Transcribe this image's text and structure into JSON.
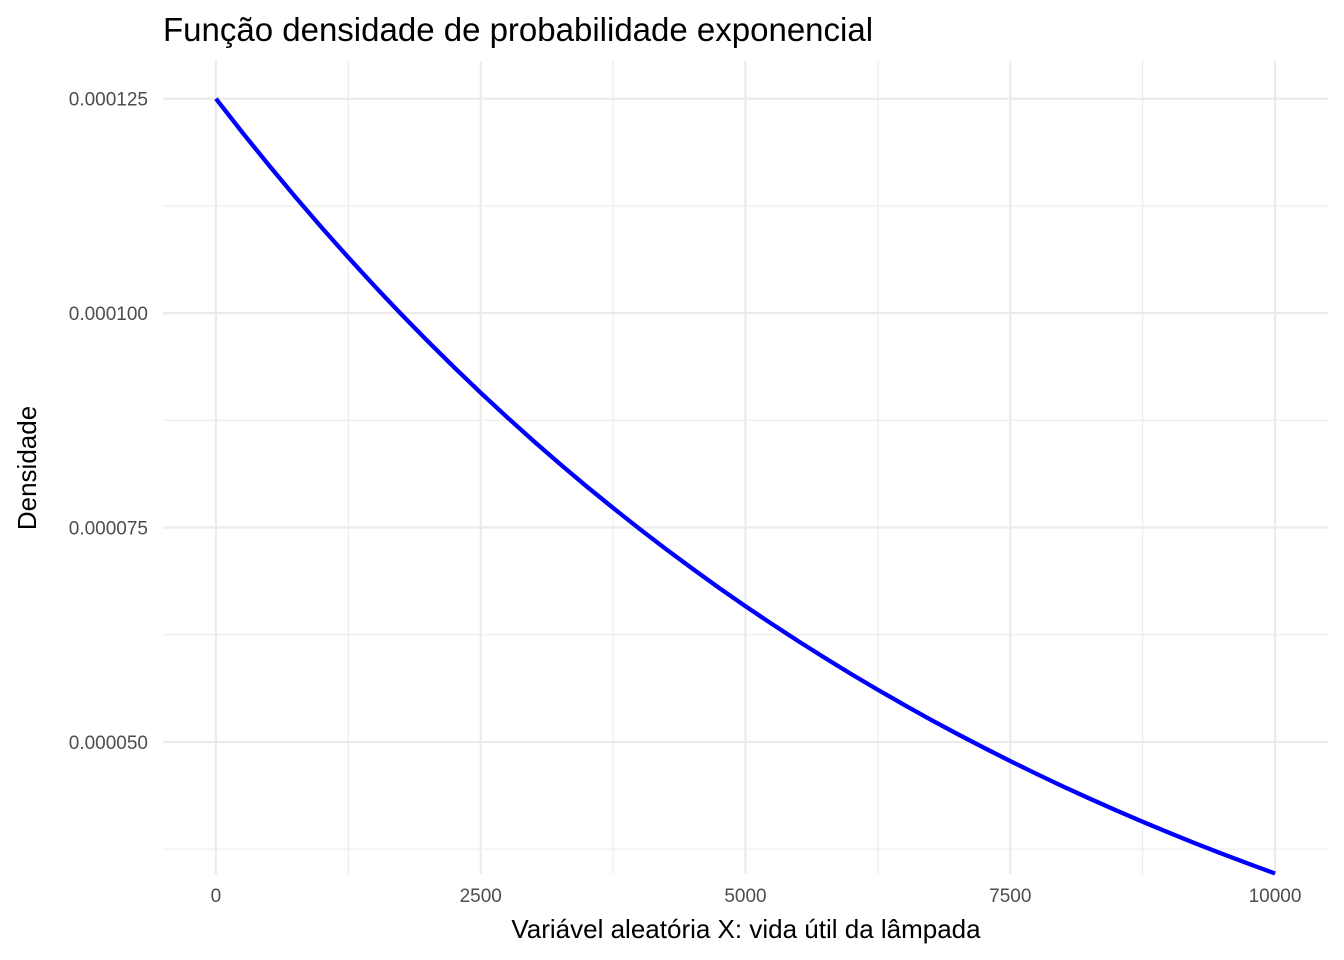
{
  "chart_data": {
    "type": "line",
    "title": "Função densidade de probabilidade exponencial",
    "xlabel": "Variável aleatória X: vida útil da lâmpada",
    "ylabel": "Densidade",
    "xlim": [
      -500,
      10500
    ],
    "ylim": [
      3.46e-05,
      0.0001294
    ],
    "x_ticks": [
      0,
      2500,
      5000,
      7500,
      10000
    ],
    "x_tick_labels": [
      "0",
      "2500",
      "5000",
      "7500",
      "10000"
    ],
    "x_minor_ticks": [
      1250,
      3750,
      6250,
      8750
    ],
    "y_ticks": [
      5e-05,
      7.5e-05,
      0.0001,
      0.000125
    ],
    "y_tick_labels": [
      "0.000050",
      "0.000075",
      "0.000100",
      "0.000125"
    ],
    "y_minor_ticks": [
      3.75e-05,
      6.25e-05,
      8.75e-05,
      0.0001125
    ],
    "grid": true,
    "legend": "none",
    "series": [
      {
        "color": "#0000ff",
        "function": "dexp(x, rate = 0.000125)",
        "x": [
          0,
          250,
          500,
          750,
          1000,
          1250,
          1500,
          1750,
          2000,
          2250,
          2500,
          2750,
          3000,
          3250,
          3500,
          3750,
          4000,
          4250,
          4500,
          4750,
          5000,
          5250,
          5500,
          5750,
          6000,
          6250,
          6500,
          6750,
          7000,
          7250,
          7500,
          7750,
          8000,
          8250,
          8500,
          8750,
          9000,
          9250,
          9500,
          9750,
          10000
        ],
        "y": [
          0.000125,
          0.00012106,
          0.00011724,
          0.00011354,
          0.00010996,
          0.00010649,
          0.00010313,
          9.987e-05,
          9.672e-05,
          9.367e-05,
          9.071e-05,
          8.785e-05,
          8.508e-05,
          8.239e-05,
          7.979e-05,
          7.728e-05,
          7.484e-05,
          7.247e-05,
          7.019e-05,
          6.797e-05,
          6.582e-05,
          6.375e-05,
          6.174e-05,
          5.979e-05,
          5.79e-05,
          5.608e-05,
          5.431e-05,
          5.259e-05,
          5.093e-05,
          4.933e-05,
          4.777e-05,
          4.626e-05,
          4.48e-05,
          4.339e-05,
          4.202e-05,
          4.069e-05,
          3.941e-05,
          3.816e-05,
          3.696e-05,
          3.579e-05,
          3.466e-05
        ]
      }
    ]
  }
}
